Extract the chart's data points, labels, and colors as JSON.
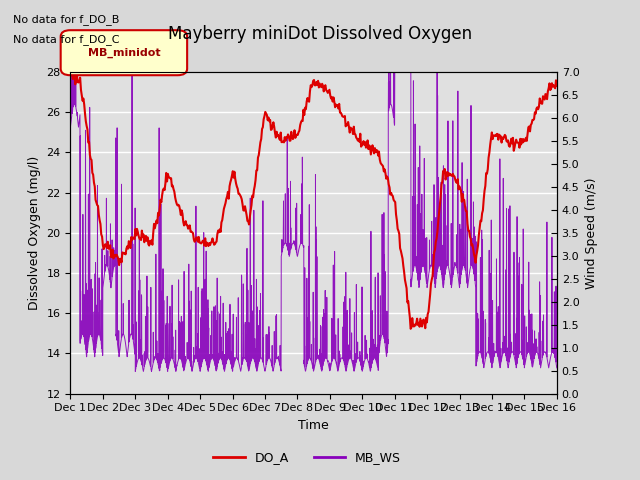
{
  "title": "Mayberry miniDot Dissolved Oxygen",
  "xlabel": "Time",
  "ylabel_left": "Dissolved Oxygen (mg/l)",
  "ylabel_right": "Wind Speed (m/s)",
  "annotation_lines": [
    "No data for f_DO_B",
    "No data for f_DO_C"
  ],
  "legend_box_label": "MB_minidot",
  "do_ylim": [
    12,
    28
  ],
  "ws_ylim": [
    0.0,
    7.0
  ],
  "do_yticks": [
    12,
    14,
    16,
    18,
    20,
    22,
    24,
    26,
    28
  ],
  "ws_yticks": [
    0.0,
    0.5,
    1.0,
    1.5,
    2.0,
    2.5,
    3.0,
    3.5,
    4.0,
    4.5,
    5.0,
    5.5,
    6.0,
    6.5,
    7.0
  ],
  "xtick_labels": [
    "Dec 1",
    "Dec 2",
    "Dec 3",
    "Dec 4",
    "Dec 5",
    "Dec 6",
    "Dec 7",
    "Dec 8",
    "Dec 9",
    "Dec 10",
    "Dec 11",
    "Dec 12",
    "Dec 13",
    "Dec 14",
    "Dec 15",
    "Dec 16"
  ],
  "do_color": "#dd0000",
  "ws_color": "#8800bb",
  "figure_bg_color": "#d8d8d8",
  "plot_bg_color": "#e0e0e0",
  "grid_color": "#ffffff",
  "title_fontsize": 12,
  "label_fontsize": 9,
  "tick_fontsize": 8,
  "annot_fontsize": 8,
  "legend_fontsize": 9
}
